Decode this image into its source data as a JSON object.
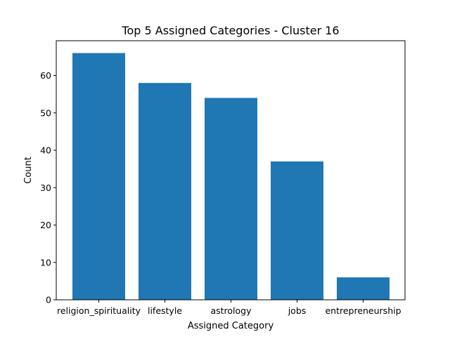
{
  "chart_data": {
    "type": "bar",
    "title": "Top 5 Assigned Categories - Cluster 16",
    "xlabel": "Assigned Category",
    "ylabel": "Count",
    "categories": [
      "religion_spirituality",
      "lifestyle",
      "astrology",
      "jobs",
      "entrepreneurship"
    ],
    "values": [
      66,
      58,
      54,
      37,
      6
    ],
    "ylim": [
      0,
      69.3
    ],
    "yticks": [
      0,
      10,
      20,
      30,
      40,
      50,
      60
    ],
    "grid": false,
    "bar_color": "#1f77b4"
  }
}
